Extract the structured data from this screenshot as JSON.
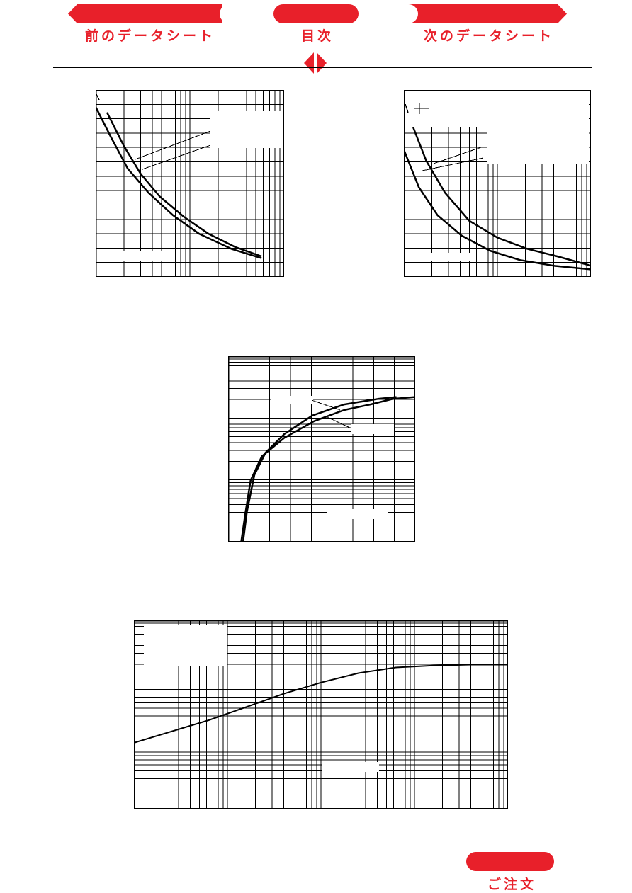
{
  "nav": {
    "prev_label": "前のデータシート",
    "toc_label": "目次",
    "next_label": "次のデータシート",
    "order_label": "ご注文"
  },
  "colors": {
    "accent": "#e8202a",
    "ink": "#000000"
  },
  "chart_data": [
    {
      "type": "line",
      "x_scale": "log",
      "y_scale": "linear",
      "series": [
        {
          "values": []
        },
        {
          "values": []
        }
      ]
    },
    {
      "type": "line",
      "x_scale": "log",
      "y_scale": "linear",
      "series": [
        {
          "values": []
        },
        {
          "values": []
        }
      ]
    },
    {
      "type": "line",
      "x_scale": "linear",
      "y_scale": "log",
      "series": [
        {
          "values": []
        },
        {
          "values": []
        }
      ]
    },
    {
      "type": "line",
      "x_scale": "log",
      "y_scale": "log",
      "series": [
        {
          "values": []
        }
      ]
    }
  ]
}
